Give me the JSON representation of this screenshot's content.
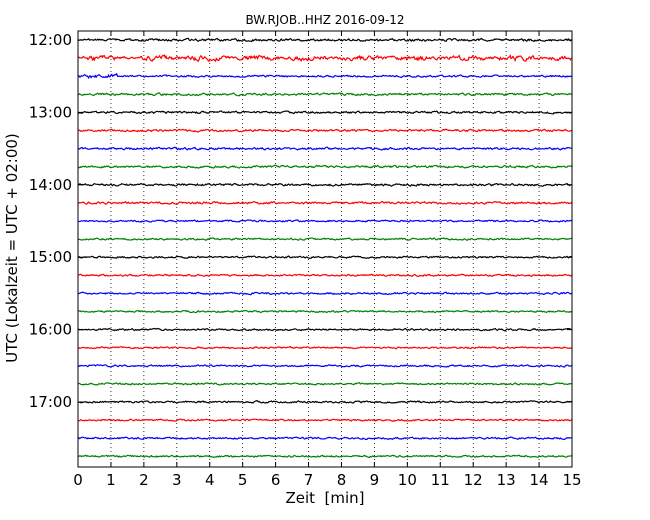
{
  "chart_data": {
    "type": "line",
    "title": "BW.RJOB..HHZ 2016-09-12",
    "xlabel": "Zeit  [min]",
    "ylabel": "UTC (Lokalzeit = UTC + 02:00)",
    "xlim": [
      0,
      15
    ],
    "x_ticks": [
      "0",
      "1",
      "2",
      "3",
      "4",
      "5",
      "6",
      "7",
      "8",
      "9",
      "10",
      "11",
      "12",
      "13",
      "14",
      "15"
    ],
    "y_tick_labels": [
      "12:00",
      "13:00",
      "14:00",
      "15:00",
      "16:00",
      "17:00"
    ],
    "vertical_grid": true,
    "grid_style": "dotted",
    "trace_colors": [
      "#000000",
      "#ff0000",
      "#0000ff",
      "#008000"
    ],
    "series": [
      {
        "start": "12:00",
        "color": "#000000",
        "amplitude": 2.0
      },
      {
        "start": "12:15",
        "color": "#ff0000",
        "amplitude": 4.5
      },
      {
        "start": "12:30",
        "color": "#0000ff",
        "amplitude": 3.5
      },
      {
        "start": "12:45",
        "color": "#008000",
        "amplitude": 1.8
      },
      {
        "start": "13:00",
        "color": "#000000",
        "amplitude": 1.8
      },
      {
        "start": "13:15",
        "color": "#ff0000",
        "amplitude": 1.8
      },
      {
        "start": "13:30",
        "color": "#0000ff",
        "amplitude": 1.8
      },
      {
        "start": "13:45",
        "color": "#008000",
        "amplitude": 1.8
      },
      {
        "start": "14:00",
        "color": "#000000",
        "amplitude": 1.8
      },
      {
        "start": "14:15",
        "color": "#ff0000",
        "amplitude": 1.8
      },
      {
        "start": "14:30",
        "color": "#0000ff",
        "amplitude": 1.5
      },
      {
        "start": "14:45",
        "color": "#008000",
        "amplitude": 1.5
      },
      {
        "start": "15:00",
        "color": "#000000",
        "amplitude": 1.5
      },
      {
        "start": "15:15",
        "color": "#ff0000",
        "amplitude": 1.5
      },
      {
        "start": "15:30",
        "color": "#0000ff",
        "amplitude": 1.5
      },
      {
        "start": "15:45",
        "color": "#008000",
        "amplitude": 1.5
      },
      {
        "start": "16:00",
        "color": "#000000",
        "amplitude": 1.5
      },
      {
        "start": "16:15",
        "color": "#ff0000",
        "amplitude": 1.5
      },
      {
        "start": "16:30",
        "color": "#0000ff",
        "amplitude": 1.5
      },
      {
        "start": "16:45",
        "color": "#008000",
        "amplitude": 1.5
      },
      {
        "start": "17:00",
        "color": "#000000",
        "amplitude": 1.5
      },
      {
        "start": "17:15",
        "color": "#ff0000",
        "amplitude": 1.5
      },
      {
        "start": "17:30",
        "color": "#0000ff",
        "amplitude": 1.5
      },
      {
        "start": "17:45",
        "color": "#008000",
        "amplitude": 1.5
      }
    ]
  }
}
